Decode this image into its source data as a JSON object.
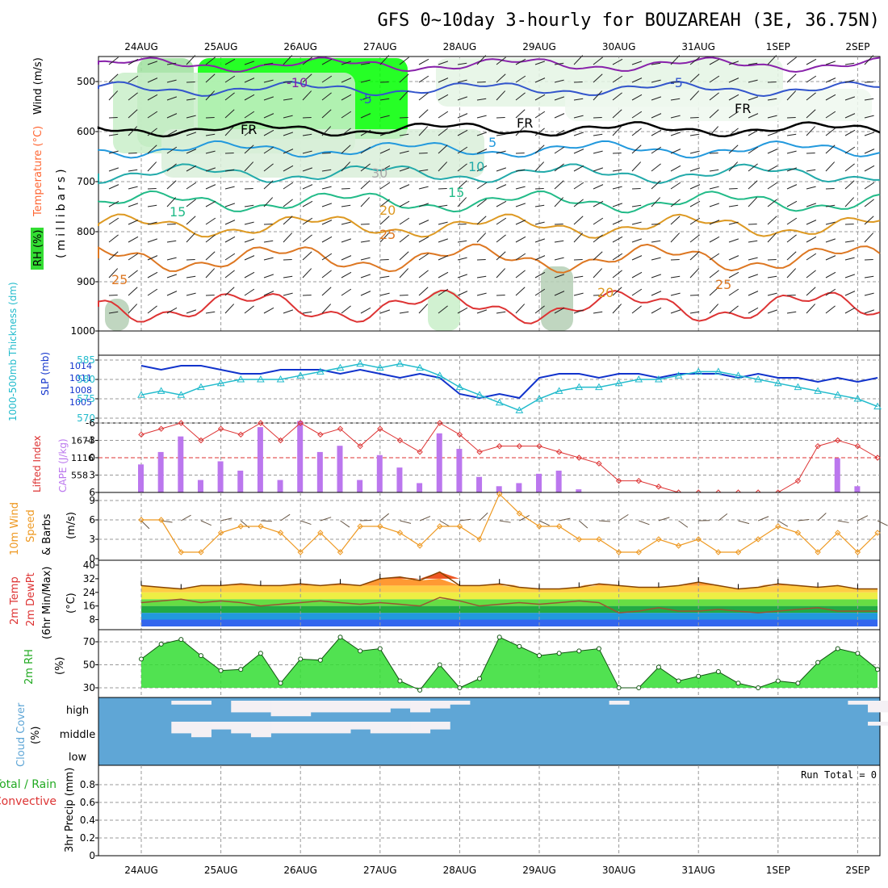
{
  "title": "GFS 0~10day 3-hourly for BOUZAREAH (3E, 36.75N)",
  "run_total": "Run Total = 0",
  "date_labels": [
    "24AUG",
    "25AUG",
    "26AUG",
    "27AUG",
    "28AUG",
    "29AUG",
    "30AUG",
    "31AUG",
    "1SEP",
    "2SEP"
  ],
  "colors": {
    "rh_green": "#00ff00",
    "temp_label": "#ff6633",
    "wind_label": "#000000",
    "slp_line": "#1133cc",
    "thickness_line": "#22bbcc",
    "cape_bar": "#bb77ee",
    "lifted_index": "#dd3333",
    "wind_speed": "#ee9922",
    "cloud_fill": "#5fa6d6",
    "rh_fill": "#33dd33"
  },
  "panels": {
    "upper_air": {
      "ylabel_rh": "RH (%)",
      "ylabel_temp": "Temperature (°C)",
      "ylabel_wind": "Wind (m/s)",
      "ylabel_units": "(millibars)",
      "yticks": [
        "500",
        "600",
        "700",
        "800",
        "900",
        "1000"
      ],
      "contour_labels": [
        "-10",
        "-5",
        "-5",
        "FR",
        "FR",
        "FR",
        "5",
        "10",
        "15",
        "15",
        "20",
        "25",
        "25",
        "25",
        "20",
        "30"
      ]
    },
    "pressure": {
      "ylabel_thickness": "1000-500mb Thickness (dm)",
      "ylabel_slp": "SLP (mb)",
      "yticks_thickness": [
        "585",
        "580",
        "575",
        "570"
      ],
      "yticks_slp": [
        "1014",
        "1011",
        "1008",
        "1005"
      ]
    },
    "stability": {
      "ylabel_li": "Lifted Index",
      "ylabel_cape": "CAPE (J/kg)",
      "yticks_li": [
        "-6",
        "-3",
        "0",
        "3",
        "6"
      ],
      "yticks_cape": [
        "1674",
        "1116",
        "558"
      ]
    },
    "wind10m": {
      "ylabel1": "10m Wind",
      "ylabel2": "Speed",
      "ylabel3": "& Barbs",
      "ylabel_units": "(m/s)",
      "yticks": [
        "9",
        "6",
        "3",
        "0"
      ]
    },
    "temp2m": {
      "ylabel1": "2m Temp",
      "ylabel2": "2m DewPt",
      "ylabel3": "(6hr Min/Max)",
      "ylabel_units": "(°C)",
      "yticks": [
        "40",
        "32",
        "24",
        "16",
        "8"
      ]
    },
    "rh2m": {
      "ylabel": "2m RH",
      "ylabel_units": "(%)",
      "yticks": [
        "70",
        "50",
        "30"
      ]
    },
    "cloud": {
      "ylabel": "Cloud Cover",
      "ylabel_units": "(%)",
      "levels": [
        "high",
        "middle",
        "low"
      ]
    },
    "precip": {
      "ylabel1": "Total / Rain",
      "ylabel2": "Convective",
      "ylabel_units": "3hr Precip (mm)",
      "yticks": [
        "0.8",
        "0.6",
        "0.4",
        "0.2",
        "0"
      ]
    }
  },
  "chart_data": [
    {
      "type": "line",
      "name": "SLP and 1000-500mb thickness",
      "x_days": [
        0,
        0.25,
        0.5,
        0.75,
        1,
        1.25,
        1.5,
        1.75,
        2,
        2.25,
        2.5,
        2.75,
        3,
        3.25,
        3.5,
        3.75,
        4,
        4.25,
        4.5,
        4.75,
        5,
        5.25,
        5.5,
        5.75,
        6,
        6.25,
        6.5,
        6.75,
        7,
        7.25,
        7.5,
        7.75,
        8,
        8.25,
        8.5,
        8.75,
        9,
        9.25
      ],
      "series": [
        {
          "name": "SLP (mb)",
          "values": [
            1014,
            1013,
            1014,
            1014,
            1013,
            1012,
            1012,
            1013,
            1013,
            1013,
            1012,
            1013,
            1012,
            1011,
            1012,
            1011,
            1007,
            1006,
            1007,
            1006,
            1011,
            1012,
            1012,
            1011,
            1012,
            1012,
            1011,
            1012,
            1012,
            1012,
            1011,
            1012,
            1011,
            1011,
            1010,
            1011,
            1010,
            1011
          ]
        },
        {
          "name": "1000-500mb Thickness (dm)",
          "values": [
            576,
            577,
            576,
            578,
            579,
            580,
            580,
            580,
            581,
            582,
            583,
            584,
            583,
            584,
            583,
            581,
            578,
            576,
            574,
            572,
            575,
            577,
            578,
            578,
            579,
            580,
            580,
            581,
            582,
            582,
            581,
            580,
            579,
            578,
            577,
            576,
            575,
            573
          ]
        }
      ]
    },
    {
      "type": "bar",
      "name": "CAPE and Lifted Index",
      "x_days": [
        0,
        0.25,
        0.5,
        0.75,
        1,
        1.25,
        1.5,
        1.75,
        2,
        2.25,
        2.5,
        2.75,
        3,
        3.25,
        3.5,
        3.75,
        4,
        4.25,
        4.5,
        4.75,
        5,
        5.25,
        5.5,
        5.75,
        6,
        6.25,
        6.5,
        6.75,
        7,
        7.25,
        7.5,
        7.75,
        8,
        8.25,
        8.5,
        8.75,
        9,
        9.25
      ],
      "series": [
        {
          "name": "CAPE (J/kg)",
          "values": [
            900,
            1300,
            1800,
            400,
            1000,
            700,
            2100,
            400,
            2300,
            1300,
            1500,
            400,
            1200,
            800,
            300,
            1900,
            1400,
            500,
            200,
            300,
            600,
            700,
            100,
            0,
            0,
            0,
            0,
            0,
            0,
            0,
            0,
            0,
            0,
            0,
            0,
            1100,
            200,
            0
          ]
        },
        {
          "name": "Lifted Index",
          "values": [
            -4,
            -5,
            -6,
            -3,
            -5,
            -4,
            -6,
            -3,
            -6,
            -4,
            -5,
            -2,
            -5,
            -3,
            -1,
            -6,
            -4,
            -1,
            -2,
            -2,
            -2,
            -1,
            0,
            1,
            4,
            4,
            5,
            6,
            6,
            6,
            6,
            6,
            6,
            4,
            -2,
            -3,
            -2,
            0
          ]
        }
      ]
    },
    {
      "type": "line",
      "name": "10m Wind Speed",
      "x_days": [
        0,
        0.25,
        0.5,
        0.75,
        1,
        1.25,
        1.5,
        1.75,
        2,
        2.25,
        2.5,
        2.75,
        3,
        3.25,
        3.5,
        3.75,
        4,
        4.25,
        4.5,
        4.75,
        5,
        5.25,
        5.5,
        5.75,
        6,
        6.25,
        6.5,
        6.75,
        7,
        7.25,
        7.5,
        7.75,
        8,
        8.25,
        8.5,
        8.75,
        9,
        9.25
      ],
      "series": [
        {
          "name": "Wind Speed (m/s)",
          "values": [
            6,
            6,
            1,
            1,
            4,
            5,
            5,
            4,
            1,
            4,
            1,
            5,
            5,
            4,
            2,
            5,
            5,
            3,
            10,
            7,
            5,
            5,
            3,
            3,
            1,
            1,
            3,
            2,
            3,
            1,
            1,
            3,
            5,
            4,
            1,
            4,
            1,
            4
          ]
        }
      ]
    },
    {
      "type": "area",
      "name": "2m Temperature and Dewpoint",
      "x_days": [
        0,
        0.25,
        0.5,
        0.75,
        1,
        1.25,
        1.5,
        1.75,
        2,
        2.25,
        2.5,
        2.75,
        3,
        3.25,
        3.5,
        3.75,
        4,
        4.25,
        4.5,
        4.75,
        5,
        5.25,
        5.5,
        5.75,
        6,
        6.25,
        6.5,
        6.75,
        7,
        7.25,
        7.5,
        7.75,
        8,
        8.25,
        8.5,
        8.75,
        9,
        9.25
      ],
      "series": [
        {
          "name": "2m Temp (°C)",
          "values": [
            28,
            27,
            26,
            28,
            28,
            29,
            28,
            28,
            29,
            28,
            29,
            28,
            32,
            33,
            31,
            36,
            28,
            28,
            29,
            27,
            26,
            26,
            27,
            29,
            28,
            27,
            27,
            28,
            30,
            28,
            26,
            27,
            29,
            28,
            27,
            28,
            26,
            26
          ]
        },
        {
          "name": "2m DewPt (°C)",
          "values": [
            18,
            19,
            20,
            18,
            19,
            18,
            16,
            17,
            18,
            19,
            18,
            17,
            18,
            17,
            16,
            21,
            19,
            16,
            17,
            18,
            17,
            18,
            19,
            18,
            12,
            13,
            15,
            13,
            13,
            14,
            13,
            12,
            13,
            14,
            15,
            13,
            13,
            13
          ]
        }
      ]
    },
    {
      "type": "area",
      "name": "2m RH",
      "x_days": [
        0,
        0.25,
        0.5,
        0.75,
        1,
        1.25,
        1.5,
        1.75,
        2,
        2.25,
        2.5,
        2.75,
        3,
        3.25,
        3.5,
        3.75,
        4,
        4.25,
        4.5,
        4.75,
        5,
        5.25,
        5.5,
        5.75,
        6,
        6.25,
        6.5,
        6.75,
        7,
        7.25,
        7.5,
        7.75,
        8,
        8.25,
        8.5,
        8.75,
        9,
        9.25
      ],
      "series": [
        {
          "name": "2m RH (%)",
          "values": [
            55,
            68,
            72,
            58,
            45,
            46,
            60,
            34,
            55,
            54,
            74,
            62,
            64,
            36,
            28,
            50,
            30,
            38,
            74,
            66,
            58,
            60,
            62,
            64,
            30,
            30,
            48,
            36,
            40,
            44,
            34,
            30,
            36,
            34,
            52,
            64,
            60,
            46
          ]
        }
      ]
    },
    {
      "type": "heatmap",
      "name": "Cloud Cover",
      "rows": [
        "high",
        "middle",
        "low"
      ],
      "x_days": [
        0,
        0.25,
        0.5,
        0.75,
        1,
        1.25,
        1.5,
        1.75,
        2,
        2.25,
        2.5,
        2.75,
        3,
        3.25,
        3.5,
        3.75,
        4,
        4.25,
        4.5,
        4.75,
        5,
        5.25,
        5.5,
        5.75,
        6,
        6.25,
        6.5,
        6.75,
        7,
        7.25,
        7.5,
        7.75,
        8,
        8.25,
        8.5,
        8.75,
        9,
        9.25
      ],
      "values": [
        [
          0,
          0,
          20,
          20,
          0,
          60,
          60,
          80,
          80,
          60,
          60,
          60,
          60,
          40,
          60,
          40,
          20,
          0,
          0,
          0,
          0,
          0,
          0,
          0,
          20,
          0,
          0,
          0,
          0,
          0,
          0,
          0,
          0,
          0,
          0,
          0,
          20,
          60
        ],
        [
          0,
          0,
          60,
          80,
          40,
          60,
          80,
          60,
          60,
          60,
          60,
          40,
          60,
          60,
          60,
          40,
          0,
          0,
          0,
          0,
          0,
          0,
          0,
          0,
          0,
          0,
          0,
          0,
          0,
          0,
          0,
          0,
          0,
          0,
          0,
          0,
          0,
          20
        ],
        [
          0,
          0,
          0,
          0,
          0,
          0,
          0,
          0,
          0,
          0,
          0,
          0,
          0,
          0,
          0,
          0,
          0,
          0,
          0,
          0,
          0,
          0,
          0,
          0,
          0,
          0,
          0,
          0,
          0,
          0,
          0,
          0,
          0,
          0,
          0,
          0,
          0,
          0
        ]
      ]
    },
    {
      "type": "bar",
      "name": "3hr Precip",
      "x_days": [
        0,
        0.25,
        0.5,
        0.75,
        1,
        1.25,
        1.5,
        1.75,
        2,
        2.25,
        2.5,
        2.75,
        3,
        3.25,
        3.5,
        3.75,
        4,
        4.25,
        4.5,
        4.75,
        5,
        5.25,
        5.5,
        5.75,
        6,
        6.25,
        6.5,
        6.75,
        7,
        7.25,
        7.5,
        7.75,
        8,
        8.25,
        8.5,
        8.75,
        9,
        9.25
      ],
      "ylim": [
        0,
        1
      ],
      "series": [
        {
          "name": "3hr Precip (mm)",
          "values": [
            0,
            0,
            0,
            0,
            0,
            0,
            0,
            0,
            0,
            0,
            0,
            0,
            0,
            0,
            0,
            0,
            0,
            0,
            0,
            0,
            0,
            0,
            0,
            0,
            0,
            0,
            0,
            0,
            0,
            0,
            0,
            0,
            0,
            0,
            0,
            0,
            0,
            0
          ]
        }
      ]
    }
  ]
}
